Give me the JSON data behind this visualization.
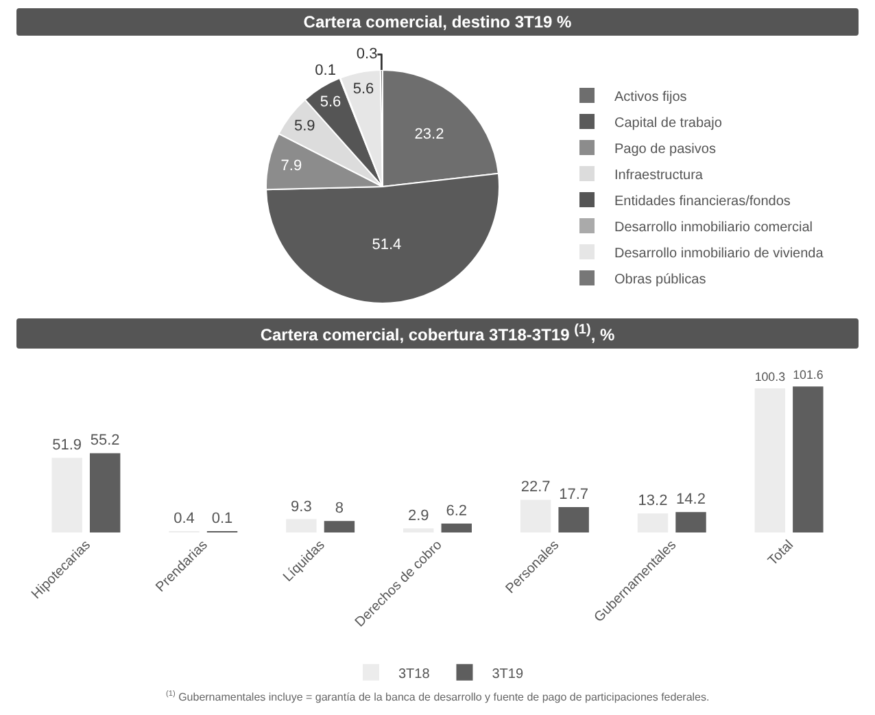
{
  "chart_data": [
    {
      "type": "pie",
      "title": "Cartera comercial, destino 3T19 %",
      "categories": [
        "Activos fijos",
        "Capital de trabajo",
        "Pago de pasivos",
        "Infraestructura",
        "Entidades financieras/fondos",
        "Desarrollo inmobiliario comercial",
        "Desarrollo inmobiliario de vivienda",
        "Obras públicas"
      ],
      "values": [
        23.2,
        51.4,
        7.9,
        5.9,
        5.6,
        0.1,
        5.6,
        0.3
      ],
      "colors": [
        "#6e6e6e",
        "#5a5a5a",
        "#8c8c8c",
        "#dcdcdc",
        "#555555",
        "#aaaaaa",
        "#e6e6e6",
        "#777777"
      ],
      "data_labels": true,
      "legend": "right"
    },
    {
      "type": "bar",
      "title": "Cartera comercial, cobertura 3T18-3T19 $^{(1)}$, %",
      "categories": [
        "Hipotecarias",
        "Prendarias",
        "Líquidas",
        "Derechos de cobro",
        "Personales",
        "Gubernamentales",
        "Total"
      ],
      "series": [
        {
          "name": "3T18",
          "color": "#ececec",
          "values": [
            51.9,
            0.4,
            9.3,
            2.9,
            22.7,
            13.2,
            100.3
          ]
        },
        {
          "name": "3T19",
          "color": "#5e5e5e",
          "values": [
            55.2,
            0.1,
            8,
            6.2,
            17.7,
            14.2,
            101.6
          ]
        }
      ],
      "data_labels": true,
      "legend": "bottom",
      "grid": false,
      "tick_labels": "x",
      "annotations": [
        "$^{(1)}$ Gubernamentales incluye = garantía de la banca de desarrollo y fuente de pago de participaciones federales."
      ]
    }
  ]
}
